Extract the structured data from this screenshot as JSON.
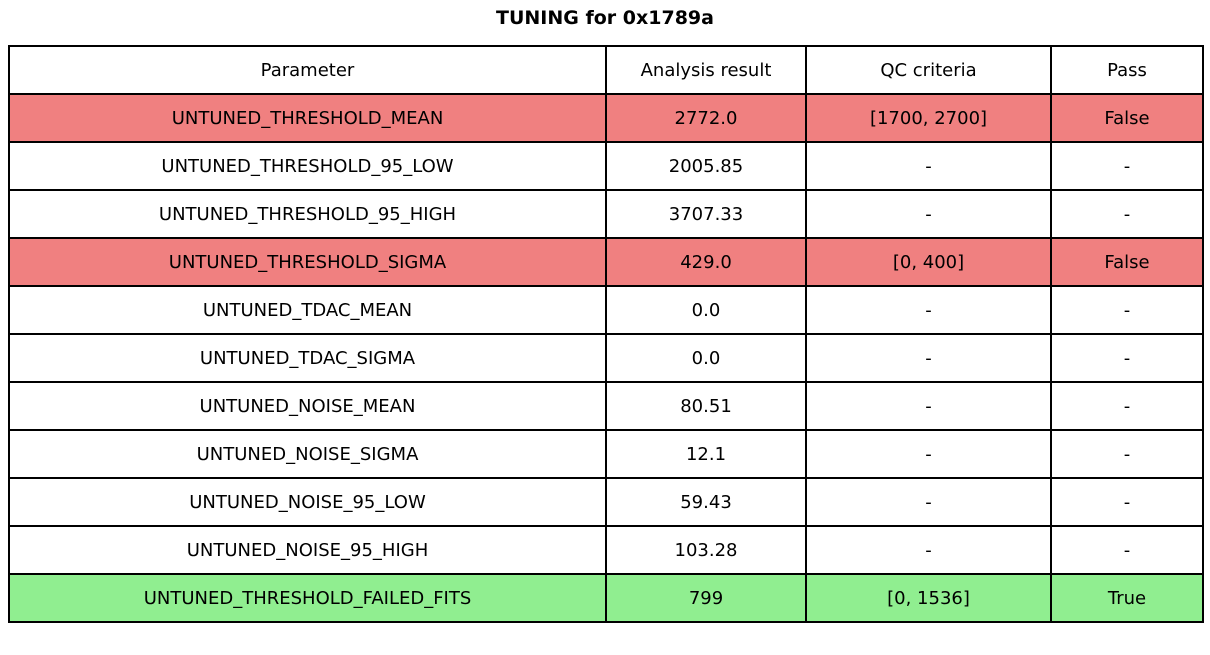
{
  "title": "TUNING for 0x1789a",
  "table": {
    "headers": [
      "Parameter",
      "Analysis result",
      "QC criteria",
      "Pass"
    ],
    "rows": [
      {
        "parameter": "UNTUNED_THRESHOLD_MEAN",
        "result": "2772.0",
        "qc": "[1700, 2700]",
        "pass": "False",
        "status": "fail"
      },
      {
        "parameter": "UNTUNED_THRESHOLD_95_LOW",
        "result": "2005.85",
        "qc": "-",
        "pass": "-",
        "status": "none"
      },
      {
        "parameter": "UNTUNED_THRESHOLD_95_HIGH",
        "result": "3707.33",
        "qc": "-",
        "pass": "-",
        "status": "none"
      },
      {
        "parameter": "UNTUNED_THRESHOLD_SIGMA",
        "result": "429.0",
        "qc": "[0, 400]",
        "pass": "False",
        "status": "fail"
      },
      {
        "parameter": "UNTUNED_TDAC_MEAN",
        "result": "0.0",
        "qc": "-",
        "pass": "-",
        "status": "none"
      },
      {
        "parameter": "UNTUNED_TDAC_SIGMA",
        "result": "0.0",
        "qc": "-",
        "pass": "-",
        "status": "none"
      },
      {
        "parameter": "UNTUNED_NOISE_MEAN",
        "result": "80.51",
        "qc": "-",
        "pass": "-",
        "status": "none"
      },
      {
        "parameter": "UNTUNED_NOISE_SIGMA",
        "result": "12.1",
        "qc": "-",
        "pass": "-",
        "status": "none"
      },
      {
        "parameter": "UNTUNED_NOISE_95_LOW",
        "result": "59.43",
        "qc": "-",
        "pass": "-",
        "status": "none"
      },
      {
        "parameter": "UNTUNED_NOISE_95_HIGH",
        "result": "103.28",
        "qc": "-",
        "pass": "-",
        "status": "none"
      },
      {
        "parameter": "UNTUNED_THRESHOLD_FAILED_FITS",
        "result": "799",
        "qc": "[0, 1536]",
        "pass": "True",
        "status": "pass"
      }
    ],
    "colors": {
      "fail": "#f08080",
      "pass": "#90ee90",
      "none": "#ffffff"
    }
  }
}
